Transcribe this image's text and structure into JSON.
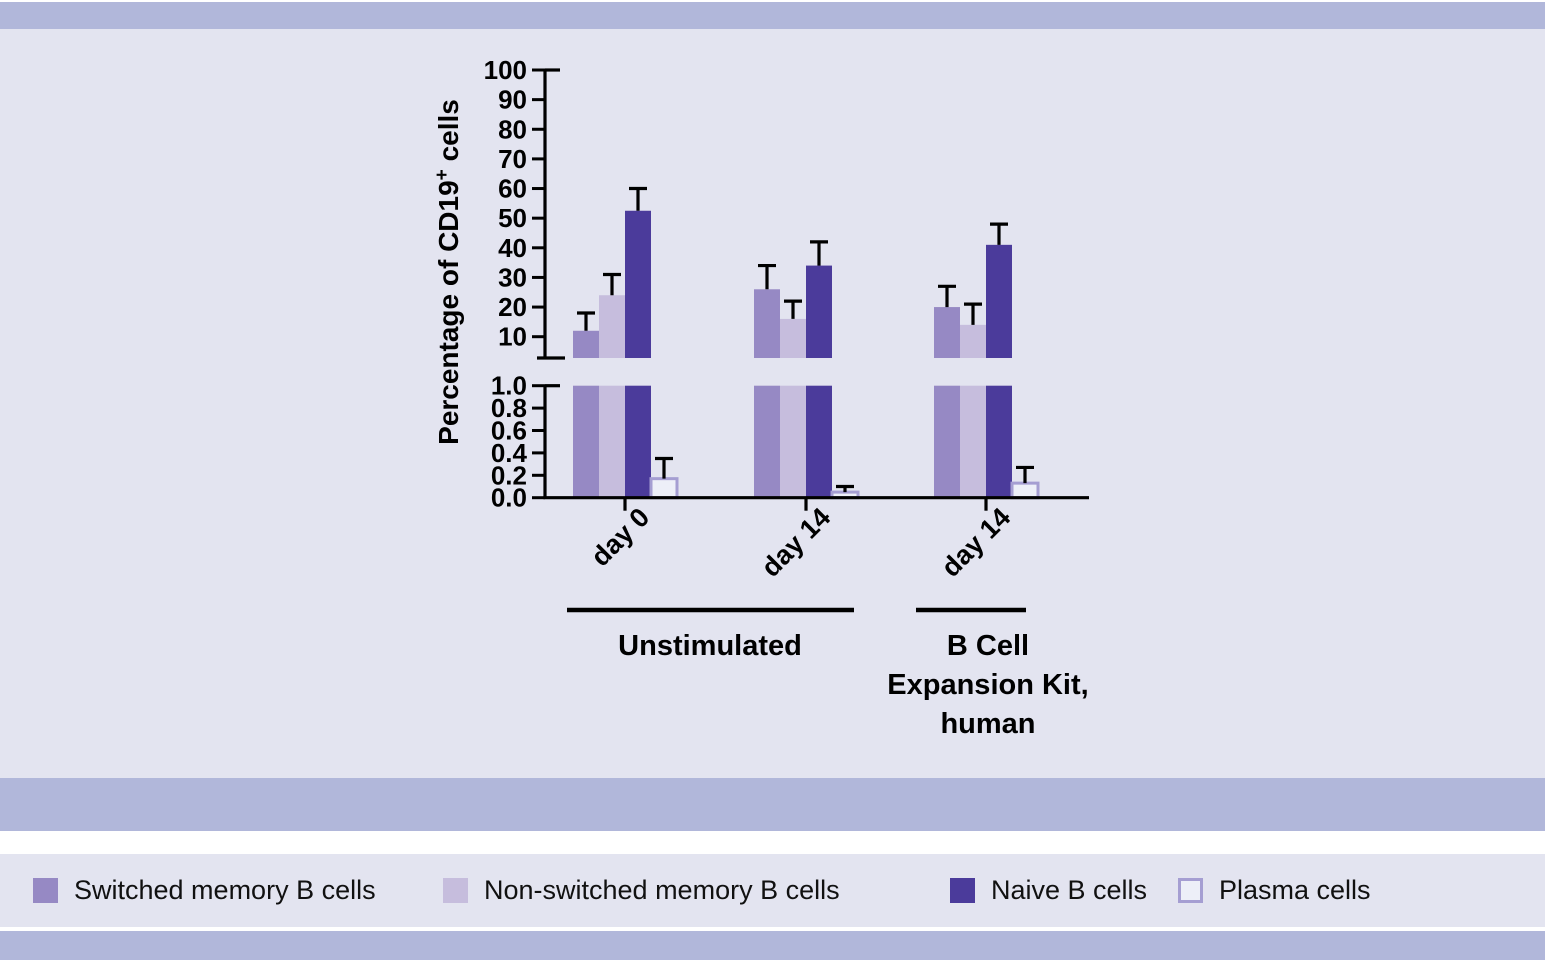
{
  "page": {
    "background_color": "#e3e4f0",
    "band_color": "#b1b7da",
    "text_color": "#111111"
  },
  "chart_data": {
    "type": "bar",
    "title": "",
    "ylabel": "Percentage of CD19+ cells",
    "ylabel_parts": {
      "main": "Percentage  of CD19",
      "sup": "+",
      "end": " cells"
    },
    "axis": {
      "broken": true,
      "top_segment": {
        "range": [
          0,
          100
        ],
        "ticks": [
          10,
          20,
          30,
          40,
          50,
          60,
          70,
          80,
          90,
          100
        ]
      },
      "bottom_segment": {
        "range": [
          0,
          1
        ],
        "ticks": [
          0.0,
          0.2,
          0.4,
          0.6,
          0.8,
          1.0
        ]
      }
    },
    "categories": [
      "day 0",
      "day 14",
      "day 14"
    ],
    "group_headers": [
      {
        "label_lines": [
          "Unstimulated"
        ],
        "category_indices": [
          0,
          1
        ]
      },
      {
        "label_lines": [
          "B Cell",
          "Expansion Kit,",
          "human"
        ],
        "category_indices": [
          2
        ]
      }
    ],
    "series": [
      {
        "name": "Switched memory B cells",
        "color": "#9689c4",
        "values": [
          12,
          26,
          20
        ],
        "errors": [
          6,
          8,
          7
        ]
      },
      {
        "name": "Non-switched memory B cells",
        "color": "#c6bddd",
        "values": [
          24,
          16,
          14
        ],
        "errors": [
          7,
          6,
          7
        ]
      },
      {
        "name": "Naive B cells",
        "color": "#4b3b9b",
        "values": [
          52.5,
          34,
          41
        ],
        "errors": [
          7.5,
          8,
          7
        ]
      },
      {
        "name": "Plasma cells",
        "color": "#edeff8",
        "border": "#a59ed2",
        "values": [
          0.17,
          0.05,
          0.13
        ],
        "errors": [
          0.18,
          0.05,
          0.14
        ]
      }
    ],
    "error_bar_color": "#000000",
    "axis_color": "#000000",
    "legend_position": "bottom"
  },
  "legend": {
    "items": [
      {
        "label": "Switched memory B cells",
        "color": "#9689c4"
      },
      {
        "label": "Non-switched memory B cells",
        "color": "#c6bddd"
      },
      {
        "label": "Naive B cells",
        "color": "#4b3b9b"
      },
      {
        "label": "Plasma cells",
        "color": "#edeff8",
        "border": "#a59ed2"
      }
    ]
  }
}
